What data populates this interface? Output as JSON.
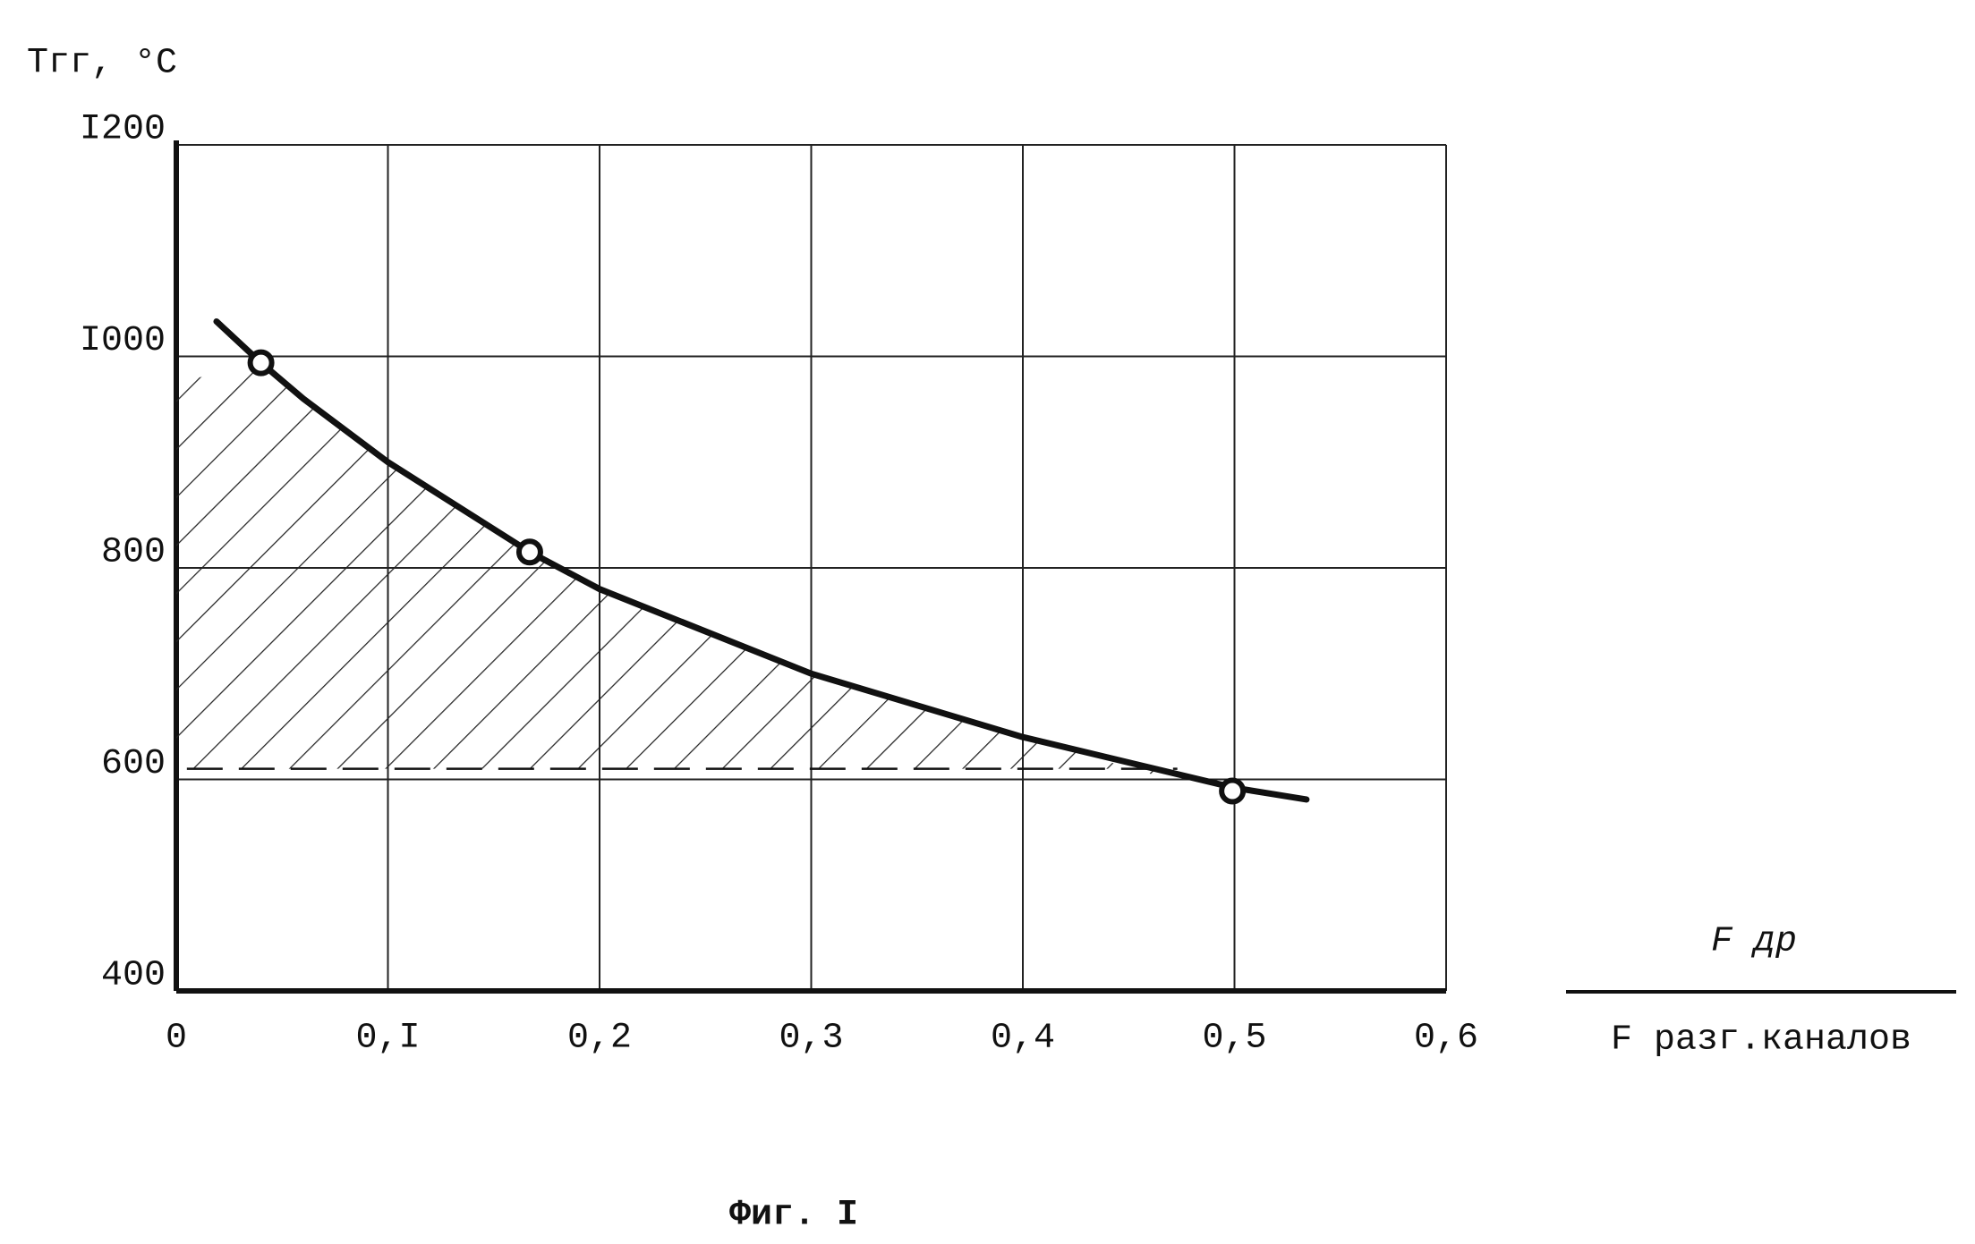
{
  "chart_data": {
    "type": "line",
    "y_label": "Tгг, °C",
    "x_label_numerator": "F др",
    "x_label_denominator": "F разг.каналов",
    "caption": "Фиг. I",
    "xlim": [
      0,
      0.6
    ],
    "ylim": [
      400,
      1200
    ],
    "xticks": [
      0,
      {
        "value": 0.1,
        "label": "0,I"
      },
      {
        "value": 0.2,
        "label": "0,2"
      },
      {
        "value": 0.3,
        "label": "0,3"
      },
      {
        "value": 0.4,
        "label": "0,4"
      },
      {
        "value": 0.5,
        "label": "0,5"
      },
      {
        "value": 0.6,
        "label": "0,6"
      }
    ],
    "yticks": [
      400,
      600,
      800,
      {
        "value": 1000,
        "label": "I000"
      },
      {
        "value": 1200,
        "label": "I200"
      }
    ],
    "grid": true,
    "series": [
      {
        "style": "solid",
        "color": "#111111",
        "x": [
          0.019,
          0.04,
          0.06,
          0.1,
          0.167,
          0.2,
          0.3,
          0.4,
          0.5,
          0.534
        ],
        "values": [
          1033,
          994,
          960,
          900,
          815,
          780,
          700,
          640,
          592,
          581
        ]
      },
      {
        "style": "markers",
        "color": "#111111",
        "x": [
          0.04,
          0.167,
          0.499
        ],
        "values": [
          994,
          815,
          589
        ]
      },
      {
        "style": "dashed",
        "color": "#111111",
        "x": [
          0.005,
          0.473
        ],
        "values": [
          610,
          610
        ]
      },
      {
        "style": "hatch",
        "color": "#111111",
        "x": [
          0,
          0.04,
          0.1,
          0.167,
          0.2,
          0.3,
          0.4,
          0.473
        ],
        "values": [
          975,
          994,
          900,
          815,
          780,
          700,
          640,
          598
        ]
      }
    ]
  }
}
